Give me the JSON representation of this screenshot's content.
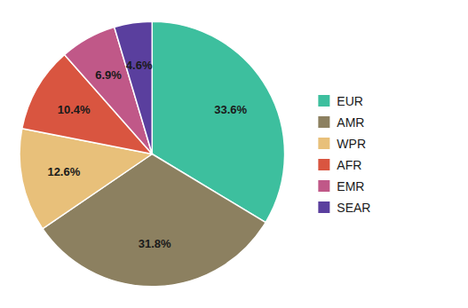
{
  "chart_data": {
    "type": "pie",
    "categories": [
      "EUR",
      "AMR",
      "WPR",
      "AFR",
      "EMR",
      "SEAR"
    ],
    "values": [
      33.6,
      31.8,
      12.6,
      10.4,
      6.9,
      4.6
    ],
    "value_labels": [
      "33.6%",
      "31.8%",
      "12.6%",
      "10.4%",
      "6.9%",
      "4.6%"
    ],
    "colors": [
      "#3dbf9e",
      "#8c8060",
      "#e8c07a",
      "#d95540",
      "#c05888",
      "#5a3f9e"
    ],
    "data_labels": true,
    "legend": "right"
  }
}
